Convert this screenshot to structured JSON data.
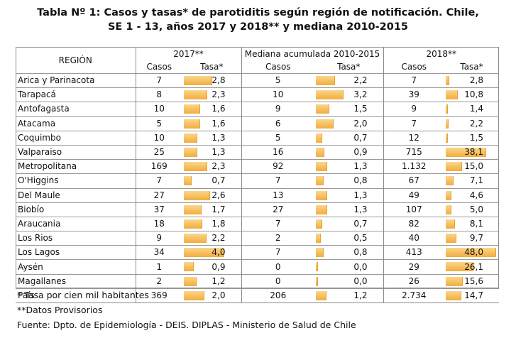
{
  "title": {
    "line1": "Tabla Nº 1: Casos y tasas* de parotiditis según región de notificación. Chile,",
    "line2": "SE 1 - 13, años 2017 y 2018** y mediana 2010-2015"
  },
  "headers": {
    "region": "REGIÓN",
    "group_2017": "2017**",
    "group_mediana": "Mediana acumulada 2010-2015",
    "group_2018": "2018**",
    "casos": "Casos",
    "tasa": "Tasa*"
  },
  "table": {
    "rows": [
      {
        "region": "Arica y Parinacota",
        "c2017": "7",
        "t2017": "2,8",
        "cmed": "5",
        "tmed": "2,2",
        "c2018": "7",
        "t2018": "2,8"
      },
      {
        "region": "Tarapacá",
        "c2017": "8",
        "t2017": "2,3",
        "cmed": "10",
        "tmed": "3,2",
        "c2018": "39",
        "t2018": "10,8"
      },
      {
        "region": "Antofagasta",
        "c2017": "10",
        "t2017": "1,6",
        "cmed": "9",
        "tmed": "1,5",
        "c2018": "9",
        "t2018": "1,4"
      },
      {
        "region": "Atacama",
        "c2017": "5",
        "t2017": "1,6",
        "cmed": "6",
        "tmed": "2,0",
        "c2018": "7",
        "t2018": "2,2"
      },
      {
        "region": "Coquimbo",
        "c2017": "10",
        "t2017": "1,3",
        "cmed": "5",
        "tmed": "0,7",
        "c2018": "12",
        "t2018": "1,5"
      },
      {
        "region": "Valparaiso",
        "c2017": "25",
        "t2017": "1,3",
        "cmed": "16",
        "tmed": "0,9",
        "c2018": "715",
        "t2018": "38,1"
      },
      {
        "region": "Metropolitana",
        "c2017": "169",
        "t2017": "2,3",
        "cmed": "92",
        "tmed": "1,3",
        "c2018": "1.132",
        "t2018": "15,0"
      },
      {
        "region": "O'Higgins",
        "c2017": "7",
        "t2017": "0,7",
        "cmed": "7",
        "tmed": "0,8",
        "c2018": "67",
        "t2018": "7,1"
      },
      {
        "region": "Del Maule",
        "c2017": "27",
        "t2017": "2,6",
        "cmed": "13",
        "tmed": "1,3",
        "c2018": "49",
        "t2018": "4,6"
      },
      {
        "region": "Biobío",
        "c2017": "37",
        "t2017": "1,7",
        "cmed": "27",
        "tmed": "1,3",
        "c2018": "107",
        "t2018": "5,0"
      },
      {
        "region": "Araucania",
        "c2017": "18",
        "t2017": "1,8",
        "cmed": "7",
        "tmed": "0,7",
        "c2018": "82",
        "t2018": "8,1"
      },
      {
        "region": "Los Rios",
        "c2017": "9",
        "t2017": "2,2",
        "cmed": "2",
        "tmed": "0,5",
        "c2018": "40",
        "t2018": "9,7"
      },
      {
        "region": "Los Lagos",
        "c2017": "34",
        "t2017": "4,0",
        "cmed": "7",
        "tmed": "0,8",
        "c2018": "413",
        "t2018": "48,0"
      },
      {
        "region": "Aysén",
        "c2017": "1",
        "t2017": "0,9",
        "cmed": "0",
        "tmed": "0,0",
        "c2018": "29",
        "t2018": "26,1"
      },
      {
        "region": "Magallanes",
        "c2017": "2",
        "t2017": "1,2",
        "cmed": "0",
        "tmed": "0,0",
        "c2018": "26",
        "t2018": "15,6"
      },
      {
        "region": "País",
        "c2017": "369",
        "t2017": "2,0",
        "cmed": "206",
        "tmed": "1,2",
        "c2018": "2.734",
        "t2018": "14,7"
      }
    ]
  },
  "bar_colors": {
    "fill": "#f2ad3e",
    "light": "#fbd68a"
  },
  "notes": {
    "tasa": "* Tasa por cien mil habitantes",
    "provisorios": "**Datos Provisorios",
    "fuente": "Fuente: Dpto. de Epidemiología - DEIS. DIPLAS - Ministerio de Salud de Chile"
  }
}
